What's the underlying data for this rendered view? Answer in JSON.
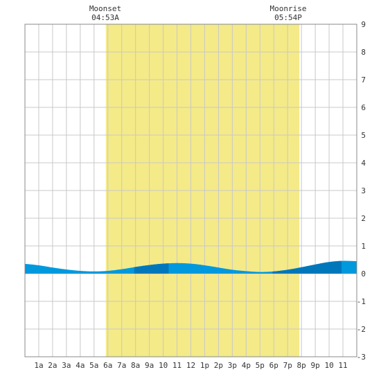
{
  "chart_data": {
    "type": "area",
    "annotations": {
      "moonset": {
        "label": "Moonset",
        "time": "04:53A"
      },
      "moonrise": {
        "label": "Moonrise",
        "time": "05:54P"
      }
    },
    "x_tick_labels": [
      "1a",
      "2a",
      "3a",
      "4a",
      "5a",
      "6a",
      "7a",
      "8a",
      "9a",
      "10",
      "11",
      "12",
      "1p",
      "2p",
      "3p",
      "4p",
      "5p",
      "6p",
      "7p",
      "8p",
      "9p",
      "10",
      "11"
    ],
    "y_tick_labels": [
      "9",
      "8",
      "7",
      "6",
      "5",
      "4",
      "3",
      "2",
      "1",
      "0",
      "-1",
      "-2",
      "-3"
    ],
    "xlim": [
      0,
      24
    ],
    "ylim": [
      -3,
      9
    ],
    "grid": true,
    "daylight_window_hours": [
      5.85,
      19.85
    ],
    "series": [
      {
        "x": [
          0,
          1,
          2,
          3,
          4,
          5,
          6,
          7,
          8,
          9,
          10,
          11,
          12,
          13,
          14,
          15,
          16,
          17,
          18,
          19,
          20,
          21,
          22,
          23,
          24
        ],
        "y": [
          0.35,
          0.3,
          0.22,
          0.15,
          0.1,
          0.08,
          0.1,
          0.16,
          0.24,
          0.31,
          0.36,
          0.38,
          0.36,
          0.3,
          0.22,
          0.14,
          0.09,
          0.06,
          0.08,
          0.14,
          0.23,
          0.33,
          0.42,
          0.46,
          0.45
        ]
      }
    ],
    "shade_bands_hours": [
      [
        7.9,
        10.4
      ],
      [
        17.9,
        22.9
      ]
    ],
    "colors": {
      "background": "#ffffff",
      "daylight": "#f4ea88",
      "grid": "#c8c8c8",
      "water": "#0099dd",
      "water_dark": "#0077bb",
      "text": "#333333"
    }
  }
}
